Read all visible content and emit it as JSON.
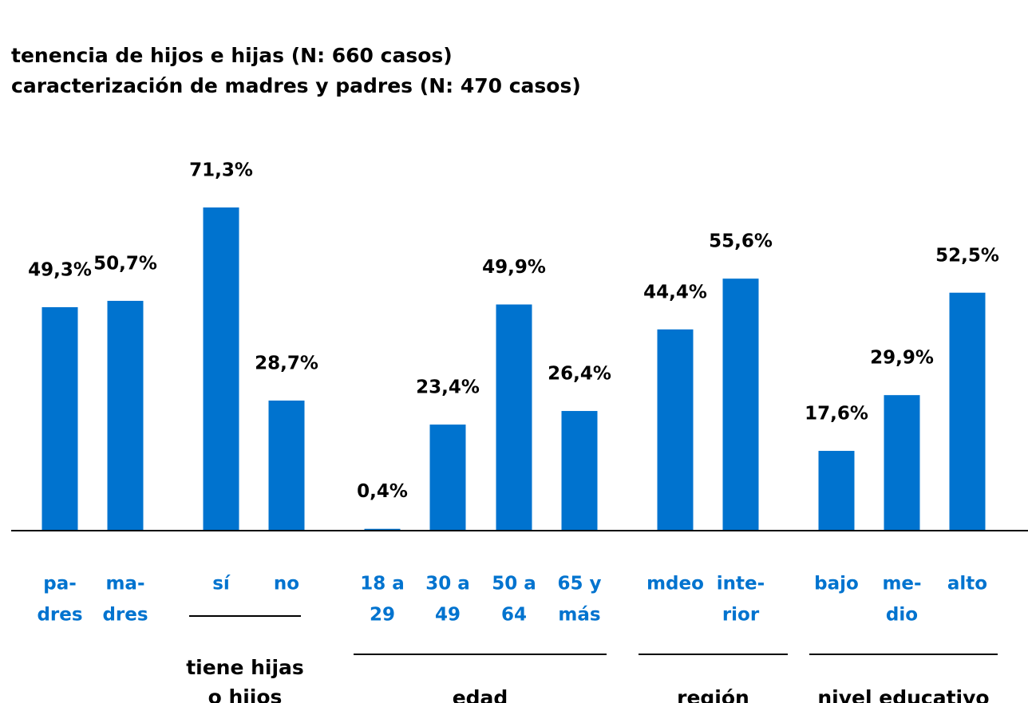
{
  "chart_data": {
    "type": "bar",
    "title": [
      "tenencia de hijos e hijas (N: 660 casos)",
      "caracterización de madres y padres (N: 470 casos)"
    ],
    "categories": [
      [
        "pa-",
        "dres"
      ],
      [
        "ma-",
        "dres"
      ],
      [
        "sí"
      ],
      [
        "no"
      ],
      [
        "18 a",
        "29"
      ],
      [
        "30 a",
        "49"
      ],
      [
        "50 a",
        "64"
      ],
      [
        "65 y",
        "más"
      ],
      [
        "mdeo"
      ],
      [
        "inte-",
        "rior"
      ],
      [
        "bajo"
      ],
      [
        "me-",
        "dio"
      ],
      [
        "alto"
      ]
    ],
    "values": [
      49.3,
      50.7,
      71.3,
      28.7,
      0.4,
      23.4,
      49.9,
      26.4,
      44.4,
      55.6,
      17.6,
      29.9,
      52.5
    ],
    "value_labels": [
      "49,3%",
      "50,7%",
      "71,3%",
      "28,7%",
      "0,4%",
      "23,4%",
      "49,9%",
      "26,4%",
      "44,4%",
      "55,6%",
      "17,6%",
      "29,9%",
      "52,5%"
    ],
    "color": "#0073cf",
    "groups": [
      [
        "tiene hijas",
        "o hijos"
      ],
      [
        "edad"
      ],
      [
        "región"
      ],
      [
        "nivel educativo"
      ]
    ]
  }
}
